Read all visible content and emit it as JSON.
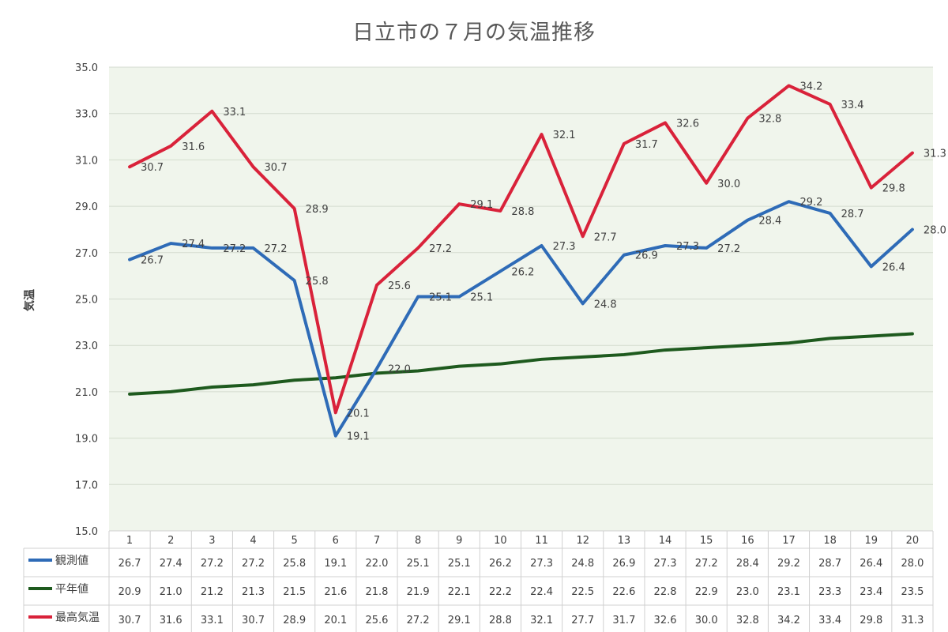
{
  "chart_data": {
    "type": "line",
    "title": "日立市の７月の気温推移",
    "ylabel": "気温",
    "xlabel": "",
    "ylim": [
      15.0,
      35.0
    ],
    "yticks": [
      "15.0",
      "17.0",
      "19.0",
      "21.0",
      "23.0",
      "25.0",
      "27.0",
      "29.0",
      "31.0",
      "33.0",
      "35.0"
    ],
    "categories": [
      "1",
      "2",
      "3",
      "4",
      "5",
      "6",
      "7",
      "8",
      "9",
      "10",
      "11",
      "12",
      "13",
      "14",
      "15",
      "16",
      "17",
      "18",
      "19",
      "20"
    ],
    "grid": true,
    "plot_background": "#f0f5ec",
    "legend": "data-table",
    "series": [
      {
        "name": "観測値",
        "color": "#2e6bb7",
        "values": [
          26.7,
          27.4,
          27.2,
          27.2,
          25.8,
          19.1,
          22.0,
          25.1,
          25.1,
          26.2,
          27.3,
          24.8,
          26.9,
          27.3,
          27.2,
          28.4,
          29.2,
          28.7,
          26.4,
          28.0
        ],
        "labels_shown": true
      },
      {
        "name": "平年値",
        "color": "#1e5a1e",
        "values": [
          20.9,
          21.0,
          21.2,
          21.3,
          21.5,
          21.6,
          21.8,
          21.9,
          22.1,
          22.2,
          22.4,
          22.5,
          22.6,
          22.8,
          22.9,
          23.0,
          23.1,
          23.3,
          23.4,
          23.5
        ],
        "labels_shown": false
      },
      {
        "name": "最高気温",
        "color": "#d9223a",
        "values": [
          30.7,
          31.6,
          33.1,
          30.7,
          28.9,
          20.1,
          25.6,
          27.2,
          29.1,
          28.8,
          32.1,
          27.7,
          31.7,
          32.6,
          30.0,
          32.8,
          34.2,
          33.4,
          29.8,
          31.3
        ],
        "labels_shown": true
      }
    ]
  }
}
